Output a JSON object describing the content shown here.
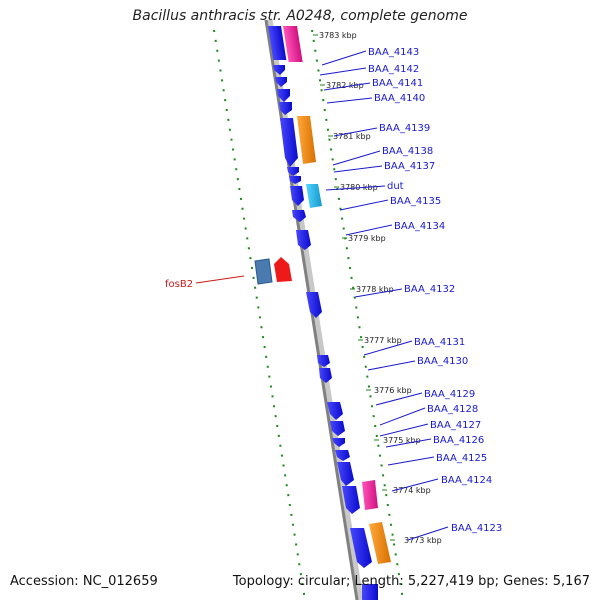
{
  "title": "Bacillus anthracis str. A0248, complete genome",
  "accession": "Accession: NC_012659",
  "topology": "Topology: circular; Length: 5,227,419 bp; Genes: 5,167",
  "colors": {
    "backbone": "#8a8a8a",
    "tick": "#1a8a1a",
    "gene_blue": "#1a1aee",
    "gene_magenta": "#ee1a9a",
    "gene_orange": "#f08a10",
    "gene_cyan": "#22bbee",
    "gene_steel": "#4a7ab0",
    "gene_red": "#ee1a1a",
    "label_blue": "#1a1acc",
    "label_red": "#cc1a1a"
  },
  "kbp_labels": [
    {
      "text": "3783 kbp",
      "kbp": 3783
    },
    {
      "text": "3782 kbp",
      "kbp": 3782
    },
    {
      "text": "3781 kbp",
      "kbp": 3781
    },
    {
      "text": "3780 kbp",
      "kbp": 3780
    },
    {
      "text": "3779 kbp",
      "kbp": 3779
    },
    {
      "text": "3778 kbp",
      "kbp": 3778
    },
    {
      "text": "3777 kbp",
      "kbp": 3777
    },
    {
      "text": "3776 kbp",
      "kbp": 3776
    },
    {
      "text": "3775 kbp",
      "kbp": 3775
    },
    {
      "text": "3774 kbp",
      "kbp": 3774
    },
    {
      "text": "3773 kbp",
      "kbp": 3773
    }
  ],
  "gene_labels": [
    {
      "text": "BAA_4143",
      "color": "blue"
    },
    {
      "text": "BAA_4142",
      "color": "blue"
    },
    {
      "text": "BAA_4141",
      "color": "blue"
    },
    {
      "text": "BAA_4140",
      "color": "blue"
    },
    {
      "text": "BAA_4139",
      "color": "blue"
    },
    {
      "text": "BAA_4138",
      "color": "blue"
    },
    {
      "text": "BAA_4137",
      "color": "blue"
    },
    {
      "text": "dut",
      "color": "blue"
    },
    {
      "text": "BAA_4135",
      "color": "blue"
    },
    {
      "text": "BAA_4134",
      "color": "blue"
    },
    {
      "text": "BAA_4132",
      "color": "blue"
    },
    {
      "text": "BAA_4131",
      "color": "blue"
    },
    {
      "text": "BAA_4130",
      "color": "blue"
    },
    {
      "text": "BAA_4129",
      "color": "blue"
    },
    {
      "text": "BAA_4128",
      "color": "blue"
    },
    {
      "text": "BAA_4127",
      "color": "blue"
    },
    {
      "text": "BAA_4126",
      "color": "blue"
    },
    {
      "text": "BAA_4125",
      "color": "blue"
    },
    {
      "text": "BAA_4124",
      "color": "blue"
    },
    {
      "text": "BAA_4123",
      "color": "blue"
    },
    {
      "text": "fosB2",
      "color": "red"
    }
  ]
}
